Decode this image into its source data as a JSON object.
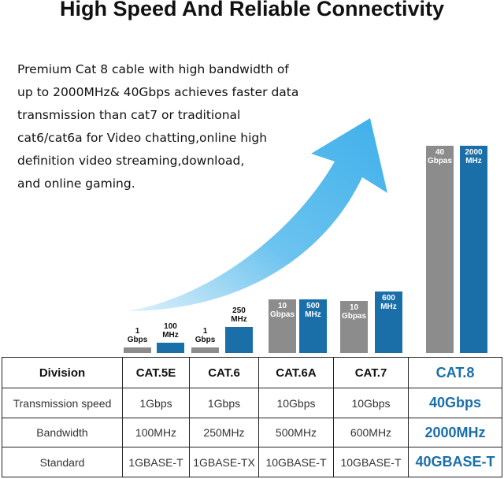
{
  "title": "High Speed And Reliable Connectivity",
  "description": [
    "Premium Cat 8 cable with high bandwidth of",
    "up to 2000MHz& 40Gbps achieves faster data",
    "transmission than cat7 or traditional",
    "cat6/cat6a for Video chatting,online high",
    "definition video streaming,download,",
    "and online gaming."
  ],
  "bars": [
    {
      "speed": [
        "1",
        "Gbps"
      ],
      "bandwidth": [
        "100",
        "MHz"
      ]
    },
    {
      "speed": [
        "1",
        "Gbps"
      ],
      "bandwidth": [
        "250",
        "MHz"
      ]
    },
    {
      "speed": [
        "10",
        "Gbpas"
      ],
      "bandwidth": [
        "500",
        "MHz"
      ]
    },
    {
      "speed": [
        "10",
        "Gbpas"
      ],
      "bandwidth": [
        "600",
        "MHz"
      ]
    },
    {
      "speed": [
        "40",
        "Gbpas"
      ],
      "bandwidth": [
        "2000",
        "MHz"
      ]
    }
  ],
  "table": {
    "rows": [
      [
        "Division",
        "CAT.5E",
        "CAT.6",
        "CAT.6A",
        "CAT.7",
        "CAT.8"
      ],
      [
        "Transmission speed",
        "1Gbps",
        "1Gbps",
        "10Gbps",
        "10Gbps",
        "40Gbps"
      ],
      [
        "Bandwidth",
        "100MHz",
        "250MHz",
        "500MHz",
        "600MHz",
        "2000MHz"
      ],
      [
        "Standard",
        "1GBASE-T",
        "1GBASE-TX",
        "10GBASE-T",
        "10GBASE-T",
        "40GBASE-T"
      ]
    ]
  }
}
